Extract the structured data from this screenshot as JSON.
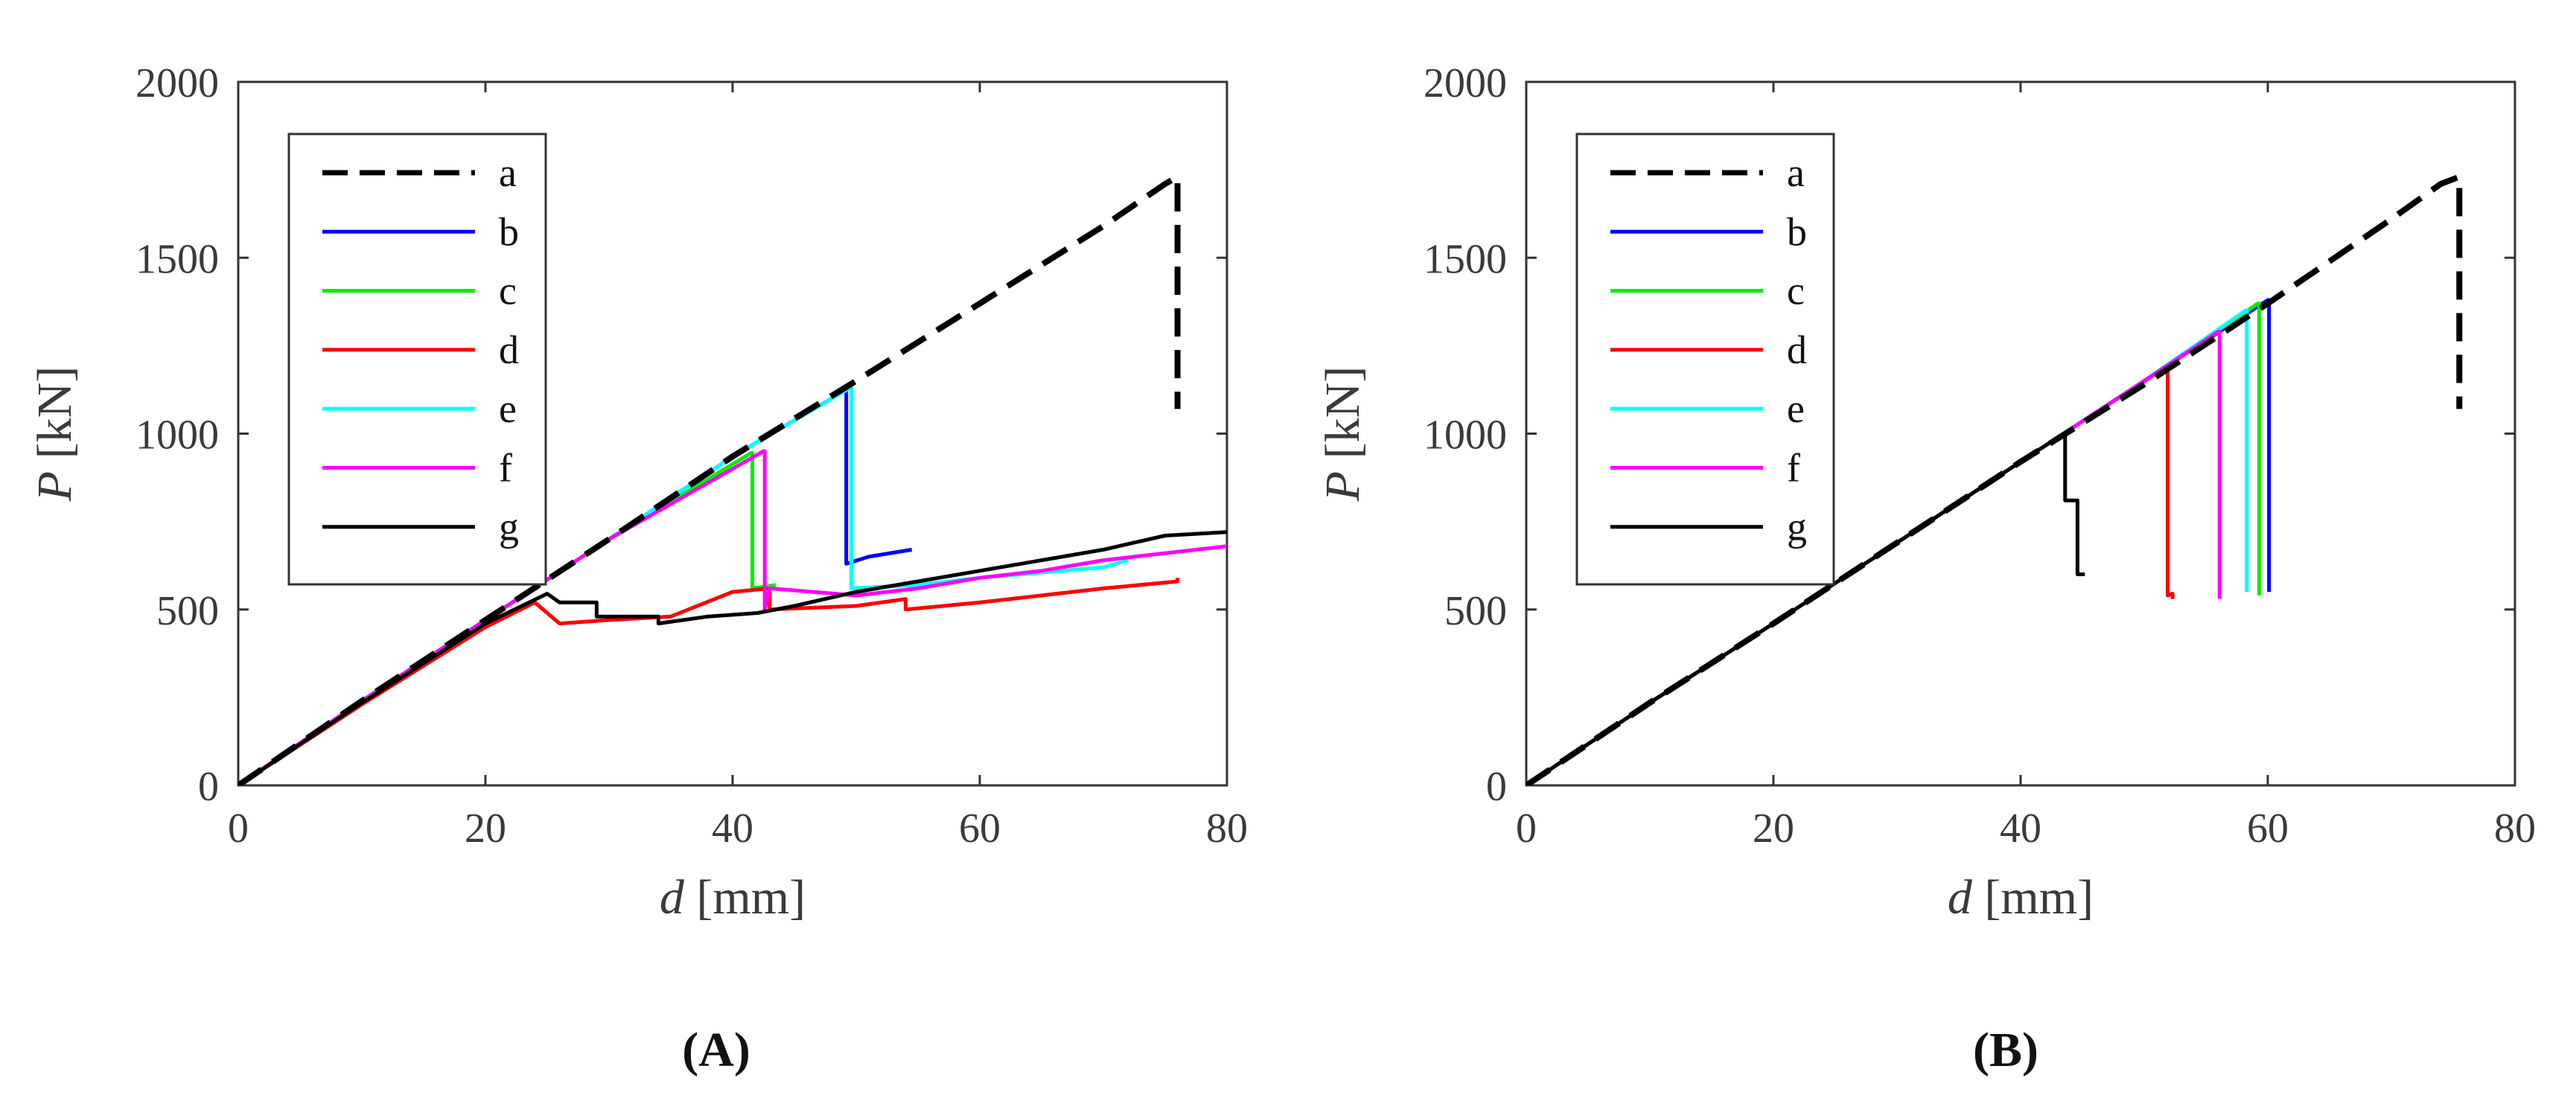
{
  "chart_data": [
    {
      "type": "line",
      "panel_label": "(A)",
      "xlabel_var": "d",
      "xlabel_unit": " [mm]",
      "ylabel_var": "P",
      "ylabel_unit": " [kN]",
      "xlim": [
        0,
        80
      ],
      "ylim": [
        0,
        2000
      ],
      "xticks": [
        0,
        20,
        40,
        60,
        80
      ],
      "yticks": [
        0,
        500,
        1000,
        1500,
        2000
      ],
      "legend_position": "top-left",
      "series": [
        {
          "name": "a",
          "color": "#000000",
          "dashed": true,
          "points": [
            [
              0,
              0
            ],
            [
              5,
              120
            ],
            [
              10,
              240
            ],
            [
              20,
              470
            ],
            [
              30,
              700
            ],
            [
              40,
              935
            ],
            [
              50,
              1150
            ],
            [
              60,
              1370
            ],
            [
              70,
              1590
            ],
            [
              75,
              1710
            ],
            [
              76,
              1730
            ],
            [
              76,
              1070
            ]
          ]
        },
        {
          "name": "b",
          "color": "#0000ff",
          "dashed": false,
          "points": [
            [
              0,
              0
            ],
            [
              10,
              240
            ],
            [
              20,
              470
            ],
            [
              30,
              700
            ],
            [
              40,
              935
            ],
            [
              49,
              1120
            ],
            [
              49.2,
              1120
            ],
            [
              49.2,
              630
            ],
            [
              51,
              650
            ],
            [
              54.5,
              670
            ]
          ]
        },
        {
          "name": "c",
          "color": "#00ee00",
          "dashed": false,
          "points": [
            [
              0,
              0
            ],
            [
              10,
              240
            ],
            [
              20,
              470
            ],
            [
              30,
              700
            ],
            [
              41.5,
              945
            ],
            [
              41.6,
              945
            ],
            [
              41.6,
              560
            ],
            [
              43.5,
              570
            ]
          ]
        },
        {
          "name": "d",
          "color": "#ff0000",
          "dashed": false,
          "points": [
            [
              0,
              0
            ],
            [
              10,
              230
            ],
            [
              20,
              450
            ],
            [
              24,
              520
            ],
            [
              26,
              460
            ],
            [
              30,
              470
            ],
            [
              35,
              480
            ],
            [
              40,
              550
            ],
            [
              43,
              560
            ],
            [
              43,
              500
            ],
            [
              50,
              510
            ],
            [
              54,
              530
            ],
            [
              54,
              500
            ],
            [
              60,
              520
            ],
            [
              65,
              540
            ],
            [
              70,
              560
            ],
            [
              76,
              580
            ],
            [
              76,
              590
            ]
          ]
        },
        {
          "name": "e",
          "color": "#00ffff",
          "dashed": false,
          "points": [
            [
              0,
              0
            ],
            [
              10,
              240
            ],
            [
              20,
              470
            ],
            [
              30,
              700
            ],
            [
              40,
              935
            ],
            [
              49.5,
              1130
            ],
            [
              49.6,
              1130
            ],
            [
              49.6,
              560
            ],
            [
              55,
              570
            ],
            [
              60,
              590
            ],
            [
              70,
              620
            ],
            [
              72,
              640
            ]
          ]
        },
        {
          "name": "f",
          "color": "#ff00ff",
          "dashed": false,
          "points": [
            [
              0,
              0
            ],
            [
              10,
              240
            ],
            [
              20,
              470
            ],
            [
              30,
              700
            ],
            [
              42.5,
              950
            ],
            [
              42.6,
              950
            ],
            [
              42.6,
              500
            ],
            [
              43,
              560
            ],
            [
              50,
              540
            ],
            [
              55,
              560
            ],
            [
              60,
              590
            ],
            [
              65,
              610
            ],
            [
              70,
              640
            ],
            [
              75,
              660
            ],
            [
              80,
              680
            ]
          ]
        },
        {
          "name": "g",
          "color": "#000000",
          "dashed": false,
          "points": [
            [
              0,
              0
            ],
            [
              10,
              235
            ],
            [
              20,
              460
            ],
            [
              25,
              545
            ],
            [
              26,
              520
            ],
            [
              29,
              520
            ],
            [
              29,
              480
            ],
            [
              34,
              480
            ],
            [
              34,
              460
            ],
            [
              38,
              480
            ],
            [
              42,
              490
            ],
            [
              45,
              510
            ],
            [
              50,
              550
            ],
            [
              55,
              580
            ],
            [
              60,
              610
            ],
            [
              65,
              640
            ],
            [
              70,
              670
            ],
            [
              75,
              710
            ],
            [
              80,
              720
            ]
          ]
        }
      ]
    },
    {
      "type": "line",
      "panel_label": "(B)",
      "xlabel_var": "d",
      "xlabel_unit": " [mm]",
      "ylabel_var": "P",
      "ylabel_unit": " [kN]",
      "xlim": [
        0,
        80
      ],
      "ylim": [
        0,
        2000
      ],
      "xticks": [
        0,
        20,
        40,
        60,
        80
      ],
      "yticks": [
        0,
        500,
        1000,
        1500,
        2000
      ],
      "legend_position": "top-left",
      "series": [
        {
          "name": "a",
          "color": "#000000",
          "dashed": true,
          "points": [
            [
              0,
              0
            ],
            [
              10,
              235
            ],
            [
              20,
              460
            ],
            [
              30,
              690
            ],
            [
              40,
              920
            ],
            [
              50,
              1140
            ],
            [
              60,
              1370
            ],
            [
              70,
              1610
            ],
            [
              74,
              1710
            ],
            [
              75.5,
              1730
            ],
            [
              75.5,
              1070
            ]
          ]
        },
        {
          "name": "b",
          "color": "#0000ff",
          "dashed": false,
          "points": [
            [
              0,
              0
            ],
            [
              10,
              235
            ],
            [
              20,
              460
            ],
            [
              30,
              690
            ],
            [
              40,
              920
            ],
            [
              50,
              1150
            ],
            [
              60,
              1380
            ],
            [
              60.1,
              1380
            ],
            [
              60.1,
              550
            ]
          ]
        },
        {
          "name": "c",
          "color": "#00ee00",
          "dashed": false,
          "points": [
            [
              0,
              0
            ],
            [
              10,
              235
            ],
            [
              20,
              460
            ],
            [
              30,
              690
            ],
            [
              40,
              920
            ],
            [
              50,
              1150
            ],
            [
              59.2,
              1370
            ],
            [
              59.3,
              1370
            ],
            [
              59.3,
              540
            ]
          ]
        },
        {
          "name": "d",
          "color": "#ff0000",
          "dashed": false,
          "points": [
            [
              0,
              0
            ],
            [
              10,
              235
            ],
            [
              20,
              460
            ],
            [
              30,
              690
            ],
            [
              40,
              920
            ],
            [
              51.8,
              1190
            ],
            [
              51.9,
              1190
            ],
            [
              51.9,
              540
            ],
            [
              52.3,
              545
            ],
            [
              52.3,
              530
            ]
          ]
        },
        {
          "name": "e",
          "color": "#00ffff",
          "dashed": false,
          "points": [
            [
              0,
              0
            ],
            [
              10,
              235
            ],
            [
              20,
              460
            ],
            [
              30,
              690
            ],
            [
              40,
              920
            ],
            [
              50,
              1150
            ],
            [
              58.2,
              1350
            ],
            [
              58.3,
              1350
            ],
            [
              58.3,
              550
            ]
          ]
        },
        {
          "name": "f",
          "color": "#ff00ff",
          "dashed": false,
          "points": [
            [
              0,
              0
            ],
            [
              10,
              235
            ],
            [
              20,
              460
            ],
            [
              30,
              690
            ],
            [
              40,
              920
            ],
            [
              50,
              1150
            ],
            [
              56,
              1290
            ],
            [
              56.1,
              1290
            ],
            [
              56.1,
              530
            ]
          ]
        },
        {
          "name": "g",
          "color": "#000000",
          "dashed": false,
          "points": [
            [
              0,
              0
            ],
            [
              10,
              235
            ],
            [
              20,
              460
            ],
            [
              30,
              690
            ],
            [
              40,
              920
            ],
            [
              43.5,
              1000
            ],
            [
              43.6,
              1000
            ],
            [
              43.6,
              810
            ],
            [
              44.6,
              810
            ],
            [
              44.6,
              600
            ],
            [
              45.2,
              600
            ]
          ]
        }
      ]
    }
  ]
}
